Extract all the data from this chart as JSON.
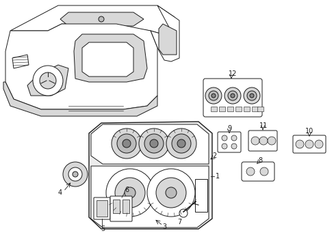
{
  "bg_color": "#ffffff",
  "line_color": "#1a1a1a",
  "fig_width": 4.89,
  "fig_height": 3.6,
  "dpi": 100,
  "lw": 0.7,
  "gray_light": "#d8d8d8",
  "gray_mid": "#bbbbbb",
  "gray_dark": "#888888",
  "panel_fill": "#ececec"
}
